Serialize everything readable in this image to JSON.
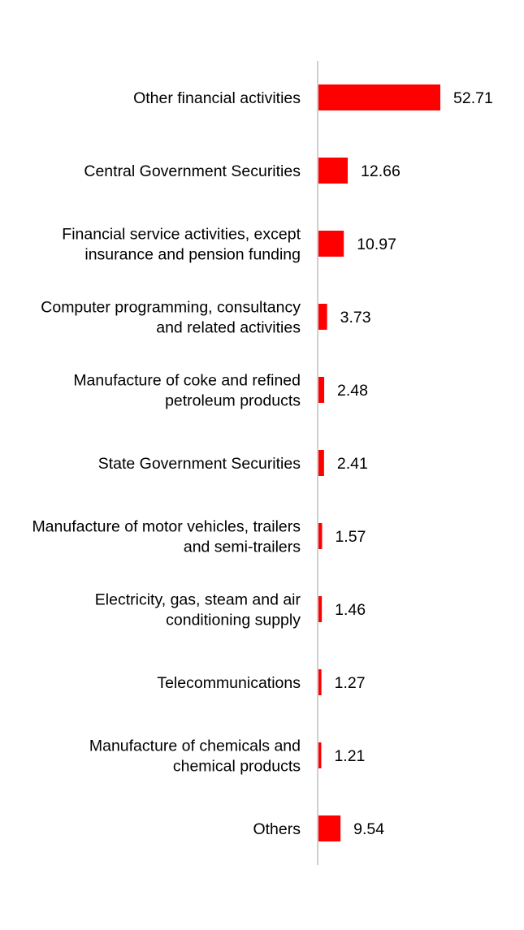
{
  "chart_data": {
    "type": "bar",
    "orientation": "horizontal",
    "categories": [
      [
        "Other financial activities"
      ],
      [
        "Central Government Securities"
      ],
      [
        "Financial service activities, except",
        "insurance and pension funding"
      ],
      [
        "Computer programming, consultancy",
        "and related activities"
      ],
      [
        "Manufacture of coke and refined",
        "petroleum products"
      ],
      [
        "State Government Securities"
      ],
      [
        "Manufacture of motor vehicles, trailers",
        "and semi-trailers"
      ],
      [
        "Electricity, gas, steam and air",
        "conditioning supply"
      ],
      [
        "Telecommunications"
      ],
      [
        "Manufacture of chemicals and",
        "chemical products"
      ],
      [
        "Others"
      ]
    ],
    "values": [
      52.71,
      12.66,
      10.97,
      3.73,
      2.48,
      2.41,
      1.57,
      1.46,
      1.27,
      1.21,
      9.54
    ],
    "value_labels": [
      "52.71",
      "12.66",
      "10.97",
      "3.73",
      "2.48",
      "2.41",
      "1.57",
      "1.46",
      "1.27",
      "1.21",
      "9.54"
    ],
    "xlim": [
      0,
      52.71
    ],
    "bar_color": "#ff0000",
    "axis_color": "#bfbfbf",
    "title": "",
    "xlabel": "",
    "ylabel": "",
    "grid": false,
    "legend": "none"
  }
}
